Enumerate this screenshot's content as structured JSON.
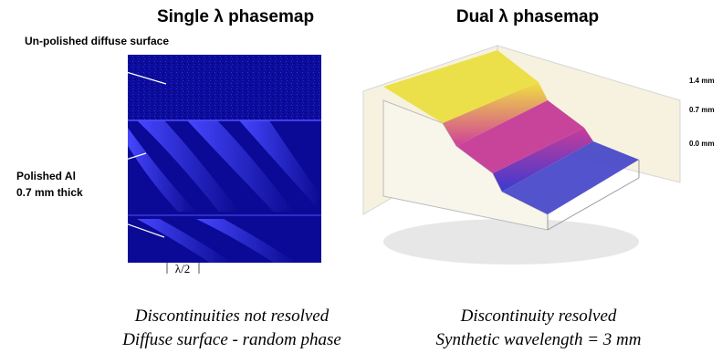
{
  "left": {
    "title": "Single λ phasemap",
    "annotations": [
      "Un-polished diffuse surface",
      "Polished Al",
      "0.7 mm thick"
    ],
    "scale_label": "λ/2",
    "caption": [
      "Discontinuities not resolved",
      "Diffuse surface - random phase"
    ]
  },
  "right": {
    "title": "Dual λ phasemap",
    "height_labels": [
      "1.4 mm",
      "0.7 mm",
      "0.0 mm"
    ],
    "caption": [
      "Discontinuity resolved",
      "Synthetic wavelength = 3 mm"
    ]
  }
}
